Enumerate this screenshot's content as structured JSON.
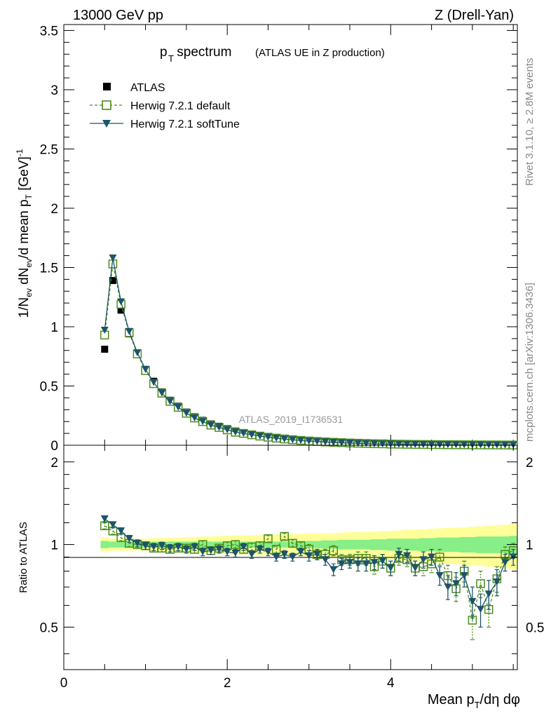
{
  "header": {
    "left": "13000 GeV pp",
    "right": "Z (Drell-Yan)"
  },
  "side_labels": {
    "rivet": "Rivet 3.1.10, ≥ 2.8M events",
    "mcplots": "mcplots.cern.ch [arXiv:1306.3436]"
  },
  "analysis_label": "ATLAS_2019_I1736531",
  "colors": {
    "atlas": "#000000",
    "default": "#4b8e1b",
    "softtune": "#1c5468",
    "band_yellow": "#ffff99",
    "band_green": "#88ee88"
  },
  "chart_data": [
    {
      "type": "scatter",
      "title_main": "p",
      "title_sub": "T",
      "title_rest": " spectrum",
      "title_note": "(ATLAS UE in Z production)",
      "ylabel": "1/N_ev dN_ev/d mean p_T [GeV]^-1",
      "ylim": [
        0,
        3.55
      ],
      "yticks": [
        {
          "v": 0,
          "label": "0"
        },
        {
          "v": 0.5,
          "label": "0.5"
        },
        {
          "v": 1,
          "label": "1"
        },
        {
          "v": 1.5,
          "label": "1.5"
        },
        {
          "v": 2,
          "label": "2"
        },
        {
          "v": 2.5,
          "label": "2.5"
        },
        {
          "v": 3,
          "label": "3"
        },
        {
          "v": 3.5,
          "label": "3.5"
        }
      ],
      "legend": [
        {
          "key": "atlas",
          "label": "ATLAS"
        },
        {
          "key": "default",
          "label": "Herwig 7.2.1 default"
        },
        {
          "key": "softtune",
          "label": "Herwig 7.2.1 softTune"
        }
      ],
      "x": [
        0.5,
        0.6,
        0.7,
        0.8,
        0.9,
        1.0,
        1.1,
        1.2,
        1.3,
        1.4,
        1.5,
        1.6,
        1.7,
        1.8,
        1.9,
        2.0,
        2.1,
        2.2,
        2.3,
        2.4,
        2.5,
        2.6,
        2.7,
        2.8,
        2.9,
        3.0,
        3.1,
        3.2,
        3.3,
        3.4,
        3.5,
        3.6,
        3.7,
        3.8,
        3.9,
        4.0,
        4.1,
        4.2,
        4.3,
        4.4,
        4.5,
        4.6,
        4.7,
        4.8,
        4.9,
        5.0,
        5.1,
        5.2,
        5.3,
        5.4,
        5.5
      ],
      "series": [
        {
          "name": "ATLAS",
          "key": "atlas",
          "values": [
            0.81,
            1.39,
            1.14,
            0.94,
            0.77,
            0.64,
            0.54,
            0.45,
            0.38,
            0.33,
            0.28,
            0.24,
            0.21,
            0.18,
            0.16,
            0.14,
            0.12,
            0.105,
            0.092,
            0.08,
            0.07,
            0.062,
            0.055,
            0.048,
            0.043,
            0.038,
            0.034,
            0.03,
            0.027,
            0.024,
            0.021,
            0.019,
            0.017,
            0.015,
            0.014,
            0.012,
            0.011,
            0.01,
            0.009,
            0.008,
            0.0072,
            0.0065,
            0.0058,
            0.0052,
            0.0047,
            0.0042,
            0.0038,
            0.0034,
            0.0031,
            0.0028,
            0.0025
          ]
        },
        {
          "name": "Herwig 7.2.1 default",
          "key": "default",
          "values": [
            0.93,
            1.53,
            1.19,
            0.95,
            0.77,
            0.63,
            0.52,
            0.44,
            0.37,
            0.32,
            0.27,
            0.23,
            0.2,
            0.17,
            0.15,
            0.13,
            0.11,
            0.1,
            0.088,
            0.077,
            0.068,
            0.06,
            0.053,
            0.047,
            0.041,
            0.036,
            0.032,
            0.028,
            0.025,
            0.022,
            0.019,
            0.017,
            0.015,
            0.013,
            0.012,
            0.01,
            0.009,
            0.008,
            0.007,
            0.0065,
            0.0058,
            0.0052,
            0.0046,
            0.0041,
            0.0037,
            0.0033,
            0.003,
            0.0027,
            0.0024,
            0.0021,
            0.0019
          ]
        },
        {
          "name": "Herwig 7.2.1 softTune",
          "key": "softtune",
          "values": [
            0.97,
            1.58,
            1.21,
            0.96,
            0.78,
            0.64,
            0.53,
            0.44,
            0.37,
            0.32,
            0.27,
            0.23,
            0.2,
            0.17,
            0.15,
            0.13,
            0.11,
            0.1,
            0.088,
            0.077,
            0.067,
            0.059,
            0.052,
            0.046,
            0.04,
            0.035,
            0.031,
            0.027,
            0.024,
            0.021,
            0.018,
            0.016,
            0.014,
            0.012,
            0.011,
            0.0095,
            0.0085,
            0.0075,
            0.0066,
            0.0059,
            0.0052,
            0.0046,
            0.0041,
            0.0036,
            0.0032,
            0.0029,
            0.0026,
            0.0023,
            0.002,
            0.0018,
            0.0016
          ]
        }
      ]
    },
    {
      "type": "scatter",
      "ylabel": "Ratio to ATLAS",
      "xlabel": "Mean p_T/dη dφ",
      "xlim": [
        0,
        5.55
      ],
      "ylim": [
        0.35,
        2.3
      ],
      "xticks": [
        {
          "v": 0,
          "label": "0"
        },
        {
          "v": 2,
          "label": "2"
        },
        {
          "v": 4,
          "label": "4"
        }
      ],
      "yticks": [
        {
          "v": 0.5,
          "label": "0.5"
        },
        {
          "v": 1,
          "label": "1"
        },
        {
          "v": 2,
          "label": "2"
        }
      ],
      "x": [
        0.5,
        0.6,
        0.7,
        0.8,
        0.9,
        1.0,
        1.1,
        1.2,
        1.3,
        1.4,
        1.5,
        1.6,
        1.7,
        1.8,
        1.9,
        2.0,
        2.1,
        2.2,
        2.3,
        2.4,
        2.5,
        2.6,
        2.7,
        2.8,
        2.9,
        3.0,
        3.1,
        3.2,
        3.3,
        3.4,
        3.5,
        3.6,
        3.7,
        3.8,
        3.9,
        4.0,
        4.1,
        4.2,
        4.3,
        4.4,
        4.5,
        4.6,
        4.7,
        4.8,
        4.9,
        5.0,
        5.1,
        5.2,
        5.3,
        5.4,
        5.5
      ],
      "band_stat": [
        0.03,
        0.025,
        0.025,
        0.025,
        0.025,
        0.025,
        0.025,
        0.025,
        0.025,
        0.025,
        0.025,
        0.025,
        0.025,
        0.025,
        0.025,
        0.025,
        0.025,
        0.025,
        0.025,
        0.025,
        0.025,
        0.025,
        0.025,
        0.028,
        0.03,
        0.03,
        0.03,
        0.035,
        0.035,
        0.04,
        0.04,
        0.04,
        0.04,
        0.045,
        0.045,
        0.05,
        0.05,
        0.05,
        0.05,
        0.055,
        0.055,
        0.06,
        0.06,
        0.06,
        0.065,
        0.065,
        0.07,
        0.07,
        0.07,
        0.07,
        0.075
      ],
      "band_total": [
        0.06,
        0.05,
        0.05,
        0.05,
        0.05,
        0.05,
        0.055,
        0.055,
        0.06,
        0.06,
        0.065,
        0.065,
        0.07,
        0.07,
        0.075,
        0.075,
        0.08,
        0.08,
        0.08,
        0.085,
        0.085,
        0.09,
        0.09,
        0.09,
        0.095,
        0.1,
        0.1,
        0.1,
        0.1,
        0.105,
        0.11,
        0.11,
        0.115,
        0.115,
        0.12,
        0.12,
        0.125,
        0.13,
        0.13,
        0.135,
        0.14,
        0.145,
        0.15,
        0.15,
        0.155,
        0.16,
        0.165,
        0.17,
        0.175,
        0.18,
        0.19
      ],
      "series": [
        {
          "name": "Herwig 7.2.1 default",
          "key": "default",
          "values": [
            1.17,
            1.12,
            1.06,
            1.01,
            1.0,
            0.99,
            0.97,
            0.97,
            0.96,
            0.97,
            0.97,
            0.96,
            1.0,
            0.95,
            0.97,
            0.99,
            1.0,
            0.96,
            0.98,
            0.99,
            1.05,
            0.96,
            1.07,
            1.01,
            0.99,
            0.96,
            0.92,
            0.92,
            0.95,
            0.88,
            0.88,
            0.89,
            0.89,
            0.83,
            0.87,
            0.82,
            0.89,
            0.88,
            0.82,
            0.83,
            0.85,
            0.9,
            0.77,
            0.69,
            0.8,
            0.53,
            0.72,
            0.58,
            0.75,
            0.92,
            0.95
          ],
          "err": [
            0.03,
            0.03,
            0.03,
            0.03,
            0.03,
            0.03,
            0.03,
            0.03,
            0.03,
            0.03,
            0.03,
            0.03,
            0.03,
            0.03,
            0.03,
            0.03,
            0.03,
            0.03,
            0.03,
            0.03,
            0.03,
            0.03,
            0.03,
            0.03,
            0.03,
            0.04,
            0.04,
            0.04,
            0.04,
            0.04,
            0.04,
            0.05,
            0.05,
            0.05,
            0.05,
            0.05,
            0.05,
            0.05,
            0.05,
            0.06,
            0.06,
            0.06,
            0.07,
            0.07,
            0.07,
            0.08,
            0.08,
            0.08,
            0.08,
            0.06,
            0.06
          ]
        },
        {
          "name": "Herwig 7.2.1 softTune",
          "key": "softtune",
          "values": [
            1.24,
            1.18,
            1.12,
            1.05,
            1.01,
            0.99,
            0.98,
            0.99,
            0.97,
            0.98,
            0.96,
            0.98,
            0.94,
            0.95,
            0.96,
            0.94,
            0.93,
            0.98,
            0.92,
            0.96,
            0.94,
            0.9,
            0.92,
            0.9,
            0.94,
            0.91,
            0.92,
            0.88,
            0.81,
            0.85,
            0.86,
            0.85,
            0.85,
            0.86,
            0.87,
            0.82,
            0.92,
            0.91,
            0.82,
            0.88,
            0.9,
            0.77,
            0.7,
            0.72,
            0.77,
            0.62,
            0.58,
            0.66,
            0.73,
            0.86,
            0.9
          ],
          "err": [
            0.03,
            0.03,
            0.03,
            0.03,
            0.03,
            0.03,
            0.03,
            0.03,
            0.03,
            0.03,
            0.03,
            0.03,
            0.03,
            0.03,
            0.03,
            0.03,
            0.03,
            0.03,
            0.03,
            0.03,
            0.03,
            0.03,
            0.03,
            0.03,
            0.03,
            0.04,
            0.04,
            0.04,
            0.04,
            0.04,
            0.04,
            0.05,
            0.05,
            0.05,
            0.05,
            0.05,
            0.05,
            0.05,
            0.05,
            0.06,
            0.06,
            0.06,
            0.07,
            0.07,
            0.07,
            0.08,
            0.08,
            0.08,
            0.08,
            0.06,
            0.06
          ]
        }
      ]
    }
  ]
}
